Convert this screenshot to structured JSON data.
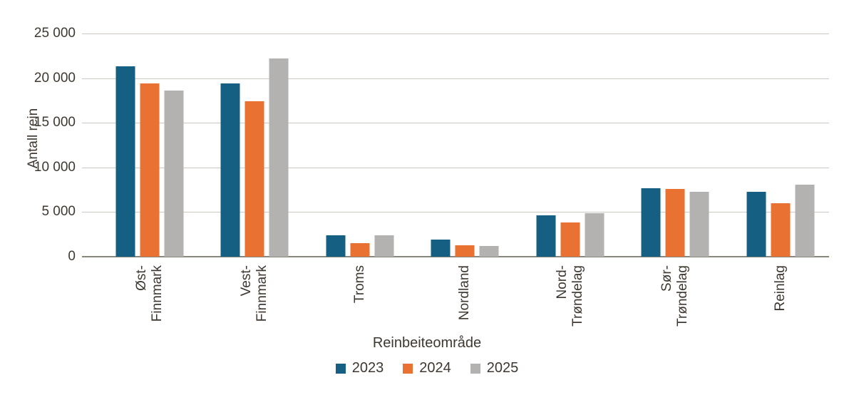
{
  "colors": {
    "series_2023": "#156082",
    "series_2024": "#e97132",
    "series_2025": "#b3b2b0",
    "text": "#3e3831",
    "gridline": "#cdc9c2",
    "axisline": "#8b867c",
    "background": "#ffffff"
  },
  "chart_data": {
    "type": "bar",
    "title": "",
    "xlabel": "Reinbeiteområde",
    "ylabel": "Antall rein",
    "categories": [
      "Øst-\nFinnmark",
      "Vest-\nFinnmark",
      "Troms",
      "Nordland",
      "Nord-\nTrøndelag",
      "Sør-\nTrøndelag",
      "Reinlag"
    ],
    "series": [
      {
        "name": "2023",
        "color": "#156082",
        "values": [
          21300,
          19400,
          2400,
          1900,
          4600,
          7700,
          7300
        ]
      },
      {
        "name": "2024",
        "color": "#e97132",
        "values": [
          19400,
          17400,
          1500,
          1300,
          3800,
          7600,
          6000
        ]
      },
      {
        "name": "2025",
        "color": "#b3b2b0",
        "values": [
          18600,
          22200,
          2400,
          1200,
          4900,
          7300,
          8100
        ]
      }
    ],
    "ylim": [
      0,
      25000
    ],
    "y_ticks": [
      "25 000",
      "20 000",
      "15 000",
      "10 000",
      "5 000",
      "0"
    ],
    "grid": "horizontal",
    "legend_position": "bottom"
  }
}
